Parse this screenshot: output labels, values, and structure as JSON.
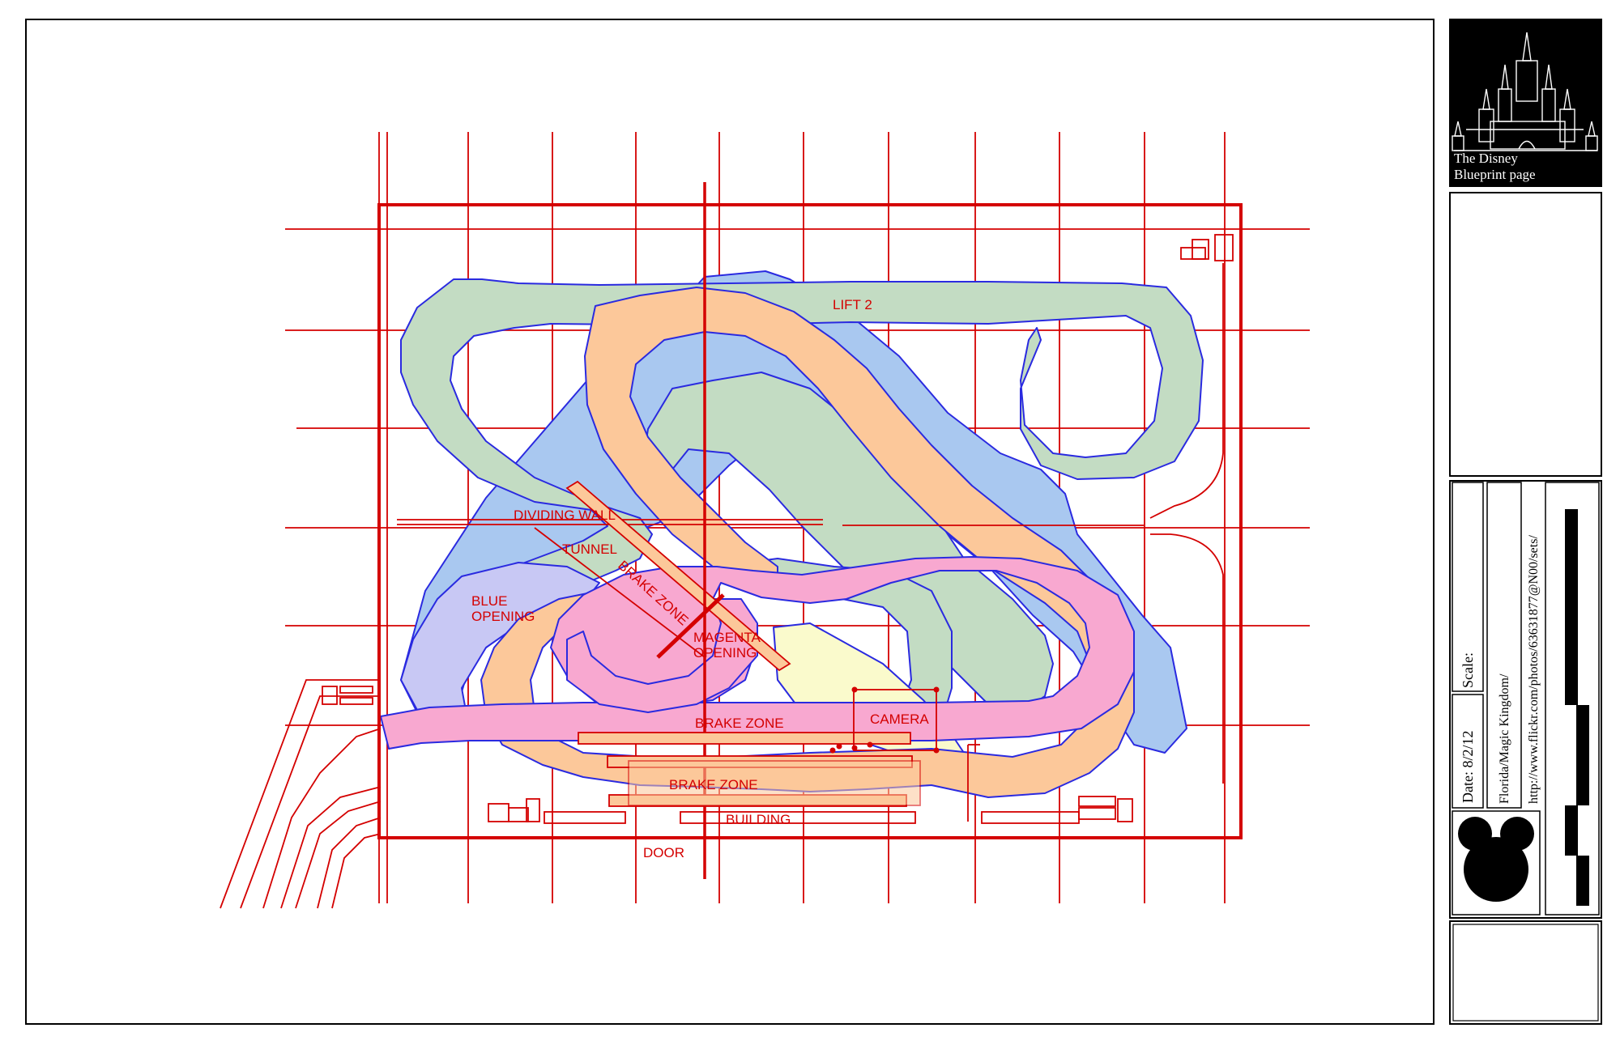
{
  "colors": {
    "grid": "#d40000",
    "track_outline": "#2a2ae0",
    "track_green": "#c3dcc3",
    "track_blue": "#a9c8f0",
    "track_orange": "#fcc89a",
    "track_pink": "#f8a8d0",
    "track_lavender": "#c8c8f4",
    "track_yellow": "#fafacc",
    "brake_fill": "#fcc89a",
    "title_block_black": "#000000"
  },
  "labels": {
    "lift2": "LIFT 2",
    "dividing_wall": "DIVIDING WALL",
    "tunnel": "TUNNEL",
    "brake_zone_diag": "BRAKE ZONE",
    "blue_opening_1": "BLUE",
    "blue_opening_2": "OPENING",
    "magenta_opening_1": "MAGENTA",
    "magenta_opening_2": "OPENING",
    "camera": "CAMERA",
    "brake_zone_top": "BRAKE ZONE",
    "brake_zone_bottom": "BRAKE ZONE",
    "building": "BUILDING",
    "door": "DOOR"
  },
  "title_block": {
    "logo_line1": "The Disney",
    "logo_line2": "Blueprint page",
    "logo_icon": "castle-icon",
    "scale_label": "Scale:",
    "date_label": "Date:  8/2/12",
    "location": "Florida/Magic  Kingdom/",
    "url": "http://www.flickr.com/photos/63631877@N00/sets/",
    "mickey_icon": "mickey-ears-icon",
    "scale_bar_icon": "scale-bar-icon"
  }
}
